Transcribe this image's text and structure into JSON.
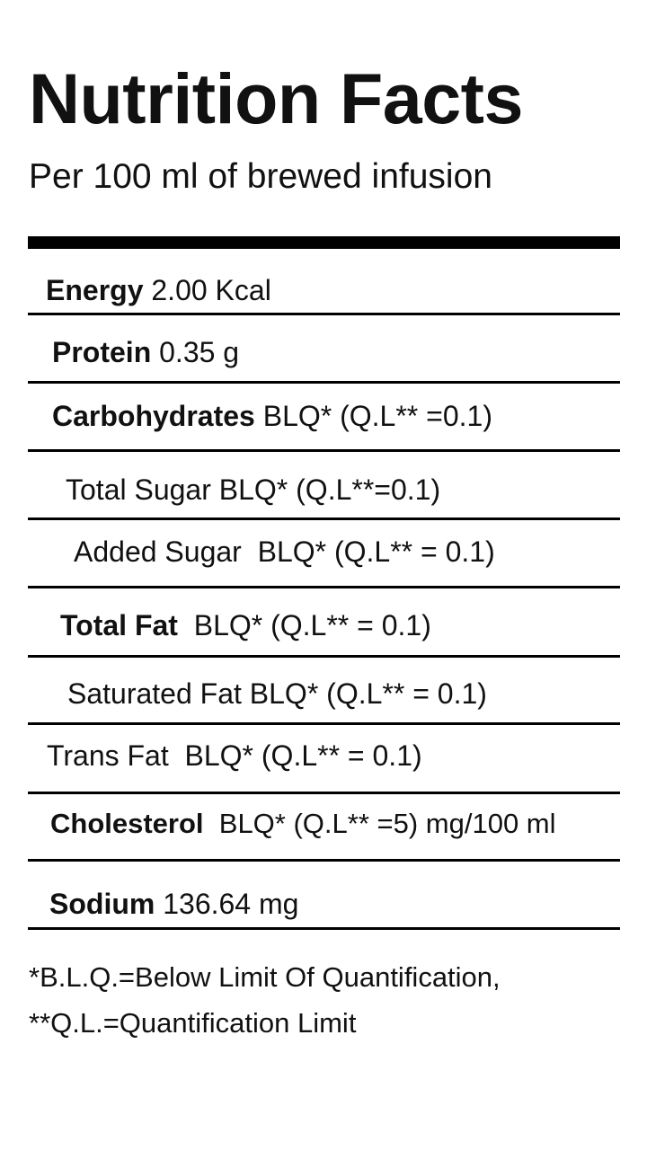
{
  "header": {
    "title": "Nutrition Facts",
    "subtitle": "Per 100 ml of brewed infusion"
  },
  "rows": [
    {
      "label": "Energy",
      "value": "2.00 Kcal"
    },
    {
      "label": "Protein",
      "value": "0.35 g"
    },
    {
      "label": "Carbohydrates",
      "value": "BLQ* (Q.L** =0.1)"
    },
    {
      "label": "Total Sugar",
      "value": "BLQ* (Q.L**=0.1)"
    },
    {
      "label": "Added Sugar",
      "value": "BLQ* (Q.L** = 0.1)"
    },
    {
      "label": "Total Fat",
      "value": "BLQ* (Q.L** = 0.1)"
    },
    {
      "label": "Saturated Fat",
      "value": "BLQ* (Q.L** = 0.1)"
    },
    {
      "label": "Trans Fat",
      "value": "BLQ* (Q.L** = 0.1)"
    },
    {
      "label": "Cholesterol",
      "value": "BLQ* (Q.L** =5) mg/100 ml"
    },
    {
      "label": "Sodium",
      "value": "136.64 mg"
    }
  ],
  "footnotes": [
    "*B.L.Q.=Below Limit Of Quantification,",
    "**Q.L.=Quantification Limit"
  ]
}
